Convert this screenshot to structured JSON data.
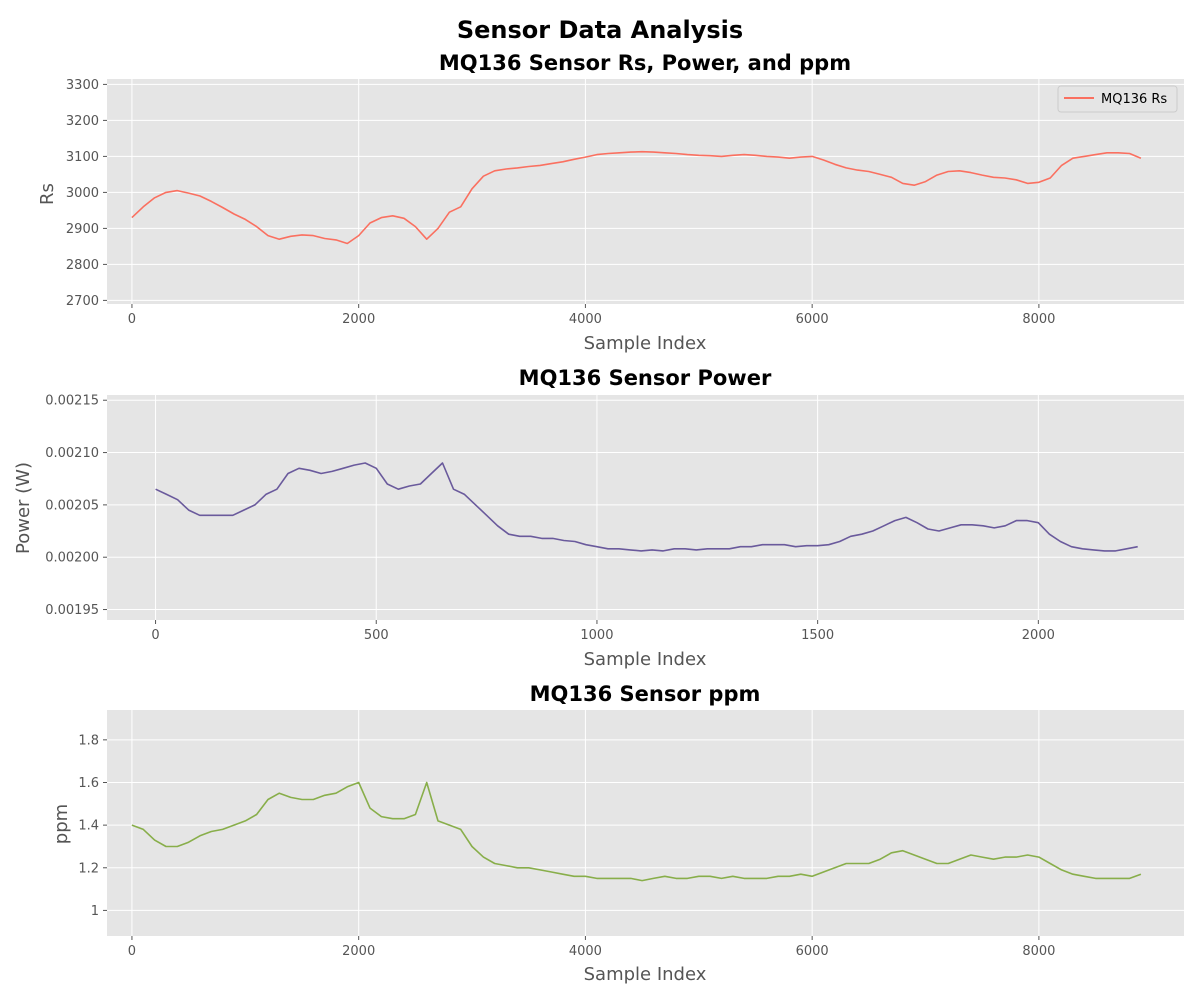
{
  "figure": {
    "title": "Sensor Data Analysis",
    "background": "#ffffff",
    "panel_background": "#e5e5e5",
    "grid_color": "#ffffff"
  },
  "chart_data": [
    {
      "type": "line",
      "title": "MQ136 Sensor Rs, Power, and ppm",
      "xlabel": "Sample Index",
      "ylabel": "Rs",
      "xlim": [
        -220,
        9280
      ],
      "ylim": [
        2690,
        3315
      ],
      "xticks": [
        0,
        2000,
        4000,
        6000,
        8000
      ],
      "yticks": [
        2700,
        2800,
        2900,
        3000,
        3100,
        3200,
        3300
      ],
      "grid": true,
      "legend": "top-right",
      "series": [
        {
          "name": "MQ136 Rs",
          "color": "#fa7060",
          "x": [
            0,
            100,
            200,
            300,
            400,
            500,
            600,
            700,
            800,
            900,
            1000,
            1100,
            1200,
            1300,
            1400,
            1500,
            1600,
            1700,
            1800,
            1900,
            2000,
            2100,
            2200,
            2300,
            2400,
            2500,
            2600,
            2700,
            2800,
            2900,
            3000,
            3100,
            3200,
            3300,
            3400,
            3500,
            3600,
            3700,
            3800,
            3900,
            4000,
            4100,
            4200,
            4300,
            4400,
            4500,
            4600,
            4700,
            4800,
            4900,
            5000,
            5100,
            5200,
            5300,
            5400,
            5500,
            5600,
            5700,
            5800,
            5900,
            6000,
            6100,
            6200,
            6300,
            6400,
            6500,
            6600,
            6700,
            6800,
            6900,
            7000,
            7100,
            7200,
            7300,
            7400,
            7500,
            7600,
            7700,
            7800,
            7900,
            8000,
            8100,
            8200,
            8300,
            8400,
            8500,
            8600,
            8700,
            8800,
            8900
          ],
          "values": [
            2930,
            2960,
            2985,
            3000,
            3005,
            2998,
            2990,
            2975,
            2958,
            2940,
            2925,
            2905,
            2880,
            2870,
            2878,
            2882,
            2880,
            2872,
            2868,
            2858,
            2880,
            2915,
            2930,
            2935,
            2928,
            2905,
            2870,
            2900,
            2945,
            2960,
            3010,
            3045,
            3060,
            3065,
            3068,
            3072,
            3075,
            3080,
            3085,
            3092,
            3098,
            3105,
            3108,
            3110,
            3112,
            3113,
            3112,
            3110,
            3108,
            3105,
            3103,
            3102,
            3100,
            3103,
            3105,
            3103,
            3100,
            3098,
            3095,
            3098,
            3100,
            3090,
            3078,
            3068,
            3062,
            3058,
            3050,
            3042,
            3025,
            3020,
            3030,
            3048,
            3058,
            3060,
            3055,
            3048,
            3042,
            3040,
            3035,
            3025,
            3028,
            3040,
            3075,
            3095,
            3100,
            3105,
            3110,
            3110,
            3108,
            3095
          ]
        }
      ]
    },
    {
      "type": "line",
      "title": "MQ136 Sensor Power",
      "xlabel": "Sample Index",
      "ylabel": "Power (W)",
      "xlim": [
        -110,
        2330
      ],
      "ylim": [
        0.00194,
        0.002155
      ],
      "xticks": [
        0,
        500,
        1000,
        1500,
        2000
      ],
      "yticks": [
        0.00195,
        0.002,
        0.00205,
        0.0021,
        0.00215
      ],
      "grid": true,
      "series": [
        {
          "color": "#6a5a9c",
          "x": [
            0,
            25,
            50,
            75,
            100,
            125,
            150,
            175,
            200,
            225,
            250,
            275,
            300,
            325,
            350,
            375,
            400,
            425,
            450,
            475,
            500,
            525,
            550,
            575,
            600,
            625,
            650,
            675,
            700,
            725,
            750,
            775,
            800,
            825,
            850,
            875,
            900,
            925,
            950,
            975,
            1000,
            1025,
            1050,
            1075,
            1100,
            1125,
            1150,
            1175,
            1200,
            1225,
            1250,
            1275,
            1300,
            1325,
            1350,
            1375,
            1400,
            1425,
            1450,
            1475,
            1500,
            1525,
            1550,
            1575,
            1600,
            1625,
            1650,
            1675,
            1700,
            1725,
            1750,
            1775,
            1800,
            1825,
            1850,
            1875,
            1900,
            1925,
            1950,
            1975,
            2000,
            2025,
            2050,
            2075,
            2100,
            2125,
            2150,
            2175,
            2200,
            2225
          ],
          "values": [
            0.002065,
            0.00206,
            0.002055,
            0.002045,
            0.00204,
            0.00204,
            0.00204,
            0.00204,
            0.002045,
            0.00205,
            0.00206,
            0.002065,
            0.00208,
            0.002085,
            0.002083,
            0.00208,
            0.002082,
            0.002085,
            0.002088,
            0.00209,
            0.002085,
            0.00207,
            0.002065,
            0.002068,
            0.00207,
            0.00208,
            0.00209,
            0.002065,
            0.00206,
            0.00205,
            0.00204,
            0.00203,
            0.002022,
            0.00202,
            0.00202,
            0.002018,
            0.002018,
            0.002016,
            0.002015,
            0.002012,
            0.00201,
            0.002008,
            0.002008,
            0.002007,
            0.002006,
            0.002007,
            0.002006,
            0.002008,
            0.002008,
            0.002007,
            0.002008,
            0.002008,
            0.002008,
            0.00201,
            0.00201,
            0.002012,
            0.002012,
            0.002012,
            0.00201,
            0.002011,
            0.002011,
            0.002012,
            0.002015,
            0.00202,
            0.002022,
            0.002025,
            0.00203,
            0.002035,
            0.002038,
            0.002033,
            0.002027,
            0.002025,
            0.002028,
            0.002031,
            0.002031,
            0.00203,
            0.002028,
            0.00203,
            0.002035,
            0.002035,
            0.002033,
            0.002022,
            0.002015,
            0.00201,
            0.002008,
            0.002007,
            0.002006,
            0.002006,
            0.002008,
            0.00201
          ]
        }
      ]
    },
    {
      "type": "line",
      "title": "MQ136 Sensor ppm",
      "xlabel": "Sample Index",
      "ylabel": "ppm",
      "xlim": [
        -220,
        9280
      ],
      "ylim": [
        0.88,
        1.94
      ],
      "xticks": [
        0,
        2000,
        4000,
        6000,
        8000
      ],
      "yticks": [
        1.0,
        1.2,
        1.4,
        1.6,
        1.8
      ],
      "grid": true,
      "series": [
        {
          "color": "#88ae4a",
          "x": [
            0,
            100,
            200,
            300,
            400,
            500,
            600,
            700,
            800,
            900,
            1000,
            1100,
            1200,
            1300,
            1400,
            1500,
            1600,
            1700,
            1800,
            1900,
            2000,
            2100,
            2200,
            2300,
            2400,
            2500,
            2600,
            2700,
            2800,
            2900,
            3000,
            3100,
            3200,
            3300,
            3400,
            3500,
            3600,
            3700,
            3800,
            3900,
            4000,
            4100,
            4200,
            4300,
            4400,
            4500,
            4600,
            4700,
            4800,
            4900,
            5000,
            5100,
            5200,
            5300,
            5400,
            5500,
            5600,
            5700,
            5800,
            5900,
            6000,
            6100,
            6200,
            6300,
            6400,
            6500,
            6600,
            6700,
            6800,
            6900,
            7000,
            7100,
            7200,
            7300,
            7400,
            7500,
            7600,
            7700,
            7800,
            7900,
            8000,
            8100,
            8200,
            8300,
            8400,
            8500,
            8600,
            8700,
            8800,
            8900
          ],
          "values": [
            1.4,
            1.38,
            1.33,
            1.3,
            1.3,
            1.32,
            1.35,
            1.37,
            1.38,
            1.4,
            1.42,
            1.45,
            1.52,
            1.55,
            1.53,
            1.52,
            1.52,
            1.54,
            1.55,
            1.58,
            1.6,
            1.48,
            1.44,
            1.43,
            1.43,
            1.45,
            1.6,
            1.42,
            1.4,
            1.38,
            1.3,
            1.25,
            1.22,
            1.21,
            1.2,
            1.2,
            1.19,
            1.18,
            1.17,
            1.16,
            1.16,
            1.15,
            1.15,
            1.15,
            1.15,
            1.14,
            1.15,
            1.16,
            1.15,
            1.15,
            1.16,
            1.16,
            1.15,
            1.16,
            1.15,
            1.15,
            1.15,
            1.16,
            1.16,
            1.17,
            1.16,
            1.18,
            1.2,
            1.22,
            1.22,
            1.22,
            1.24,
            1.27,
            1.28,
            1.26,
            1.24,
            1.22,
            1.22,
            1.24,
            1.26,
            1.25,
            1.24,
            1.25,
            1.25,
            1.26,
            1.25,
            1.22,
            1.19,
            1.17,
            1.16,
            1.15,
            1.15,
            1.15,
            1.15,
            1.17
          ]
        }
      ]
    }
  ]
}
